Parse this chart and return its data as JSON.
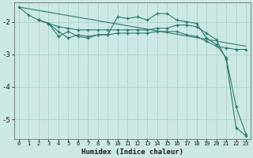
{
  "xlabel": "Humidex (Indice chaleur)",
  "background_color": "#cce8e5",
  "grid_color": "#b0d4d0",
  "line_color": "#2d7a6e",
  "xlim": [
    -0.5,
    23.5
  ],
  "ylim": [
    -5.6,
    -1.4
  ],
  "yticks": [
    -5,
    -4,
    -3,
    -2
  ],
  "xticks": [
    0,
    1,
    2,
    3,
    4,
    5,
    6,
    7,
    8,
    9,
    10,
    11,
    12,
    13,
    14,
    15,
    16,
    17,
    18,
    19,
    20,
    21,
    22,
    23
  ],
  "series": [
    {
      "x": [
        0,
        1,
        2,
        3,
        4,
        5,
        6,
        7,
        8,
        9,
        10,
        11,
        12,
        13,
        14,
        15,
        16,
        17,
        18,
        19,
        20,
        21,
        22,
        23
      ],
      "y": [
        -1.55,
        -1.8,
        -1.95,
        -2.05,
        -2.15,
        -2.2,
        -2.25,
        -2.25,
        -2.25,
        -2.25,
        -2.25,
        -2.25,
        -2.25,
        -2.25,
        -2.2,
        -2.2,
        -2.1,
        -2.1,
        -2.15,
        -2.35,
        -2.55,
        -3.15,
        -5.25,
        -5.5
      ],
      "marker": true
    },
    {
      "x": [
        2,
        3,
        4,
        5,
        6,
        7,
        8,
        9,
        10,
        11,
        12,
        13,
        14,
        15,
        16,
        17,
        18,
        19,
        20,
        21,
        22,
        23
      ],
      "y": [
        -1.95,
        -2.05,
        -2.3,
        -2.5,
        -2.4,
        -2.45,
        -2.4,
        -2.4,
        -1.85,
        -1.9,
        -1.85,
        -1.95,
        -1.75,
        -1.75,
        -1.95,
        -2.0,
        -2.05,
        -2.5,
        -2.7,
        -3.1,
        -4.6,
        -5.45
      ],
      "marker": true
    },
    {
      "x": [
        2,
        3,
        4,
        5,
        6,
        7,
        8,
        9,
        10,
        11,
        12,
        13,
        14,
        15,
        16,
        17,
        18,
        19,
        20,
        21,
        22,
        23
      ],
      "y": [
        -1.95,
        -2.05,
        -2.45,
        -2.3,
        -2.45,
        -2.5,
        -2.4,
        -2.4,
        -2.35,
        -2.35,
        -2.35,
        -2.35,
        -2.3,
        -2.3,
        -2.3,
        -2.4,
        -2.45,
        -2.6,
        -2.75,
        -2.8,
        -2.85,
        -2.85
      ],
      "marker": true
    },
    {
      "x": [
        0,
        23
      ],
      "y": [
        -1.55,
        -2.75
      ],
      "marker": false
    }
  ]
}
